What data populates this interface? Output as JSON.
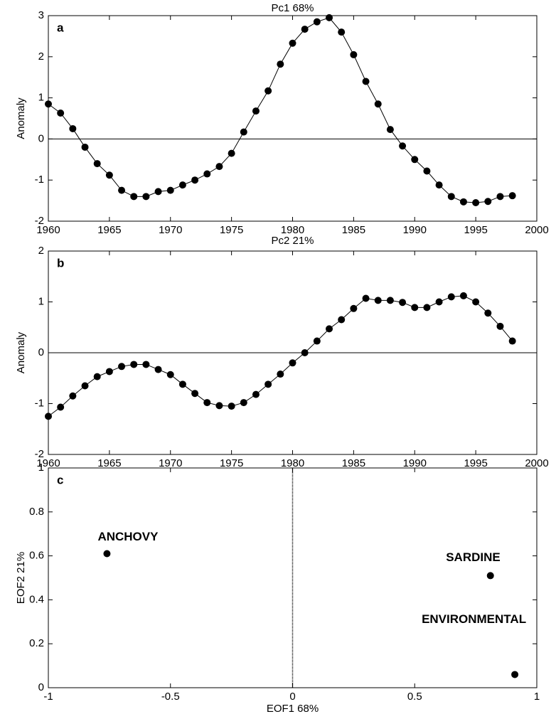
{
  "chart_data": [
    {
      "type": "line",
      "title": "Pc1 68%",
      "panel_label": "a",
      "y_label": "Anomaly",
      "x": [
        1960,
        1961,
        1962,
        1963,
        1964,
        1965,
        1966,
        1967,
        1968,
        1969,
        1970,
        1971,
        1972,
        1973,
        1974,
        1975,
        1976,
        1977,
        1978,
        1979,
        1980,
        1981,
        1982,
        1983,
        1984,
        1985,
        1986,
        1987,
        1988,
        1989,
        1990,
        1991,
        1992,
        1993,
        1994,
        1995,
        1996,
        1997,
        1998
      ],
      "values": [
        0.85,
        0.63,
        0.25,
        -0.2,
        -0.6,
        -0.88,
        -1.25,
        -1.4,
        -1.4,
        -1.28,
        -1.25,
        -1.12,
        -1.0,
        -0.85,
        -0.67,
        -0.35,
        0.17,
        0.68,
        1.17,
        1.82,
        2.33,
        2.67,
        2.85,
        2.95,
        2.6,
        2.05,
        1.4,
        0.85,
        0.23,
        -0.17,
        -0.5,
        -0.78,
        -1.12,
        -1.4,
        -1.53,
        -1.55,
        -1.52,
        -1.4,
        -1.38
      ],
      "color": "#000000",
      "zero_line": true,
      "xlim": [
        1960,
        2000
      ],
      "xticks": [
        1960,
        1965,
        1970,
        1975,
        1980,
        1985,
        1990,
        1995,
        2000
      ],
      "ylim": [
        -2,
        3
      ],
      "yticks": [
        -2,
        -1,
        0,
        1,
        2,
        3
      ]
    },
    {
      "type": "line",
      "title": "Pc2 21%",
      "panel_label": "b",
      "y_label": "Anomaly",
      "x": [
        1960,
        1961,
        1962,
        1963,
        1964,
        1965,
        1966,
        1967,
        1968,
        1969,
        1970,
        1971,
        1972,
        1973,
        1974,
        1975,
        1976,
        1977,
        1978,
        1979,
        1980,
        1981,
        1982,
        1983,
        1984,
        1985,
        1986,
        1987,
        1988,
        1989,
        1990,
        1991,
        1992,
        1993,
        1994,
        1995,
        1996,
        1997,
        1998
      ],
      "values": [
        -1.25,
        -1.07,
        -0.85,
        -0.65,
        -0.47,
        -0.37,
        -0.27,
        -0.23,
        -0.23,
        -0.33,
        -0.43,
        -0.62,
        -0.8,
        -0.98,
        -1.04,
        -1.05,
        -0.98,
        -0.82,
        -0.62,
        -0.42,
        -0.2,
        0,
        0.23,
        0.47,
        0.65,
        0.87,
        1.07,
        1.03,
        1.03,
        0.99,
        0.89,
        0.89,
        1.0,
        1.1,
        1.12,
        1.0,
        0.78,
        0.52,
        0.23
      ],
      "color": "#000000",
      "zero_line": true,
      "xlim": [
        1960,
        2000
      ],
      "xticks": [
        1960,
        1965,
        1970,
        1975,
        1980,
        1985,
        1990,
        1995,
        2000
      ],
      "ylim": [
        -2,
        2
      ],
      "yticks": [
        -2,
        -1,
        0,
        1,
        2
      ]
    },
    {
      "type": "scatter",
      "panel_label": "c",
      "x_label": "EOF1 68%",
      "y_label": "EOF2 21%",
      "labels": [
        "ANCHOVY",
        "SARDINE",
        "ENVIRONMENTAL"
      ],
      "x": [
        -0.76,
        0.81,
        0.91
      ],
      "values": [
        0.61,
        0.51,
        0.06
      ],
      "color": "#000000",
      "vline_x": 0,
      "xlim": [
        -1,
        1
      ],
      "xticks": [
        -1,
        -0.5,
        0,
        0.5,
        1
      ],
      "ylim": [
        0,
        1
      ],
      "yticks": [
        0,
        0.2,
        0.4,
        0.6,
        0.8,
        1
      ]
    }
  ]
}
